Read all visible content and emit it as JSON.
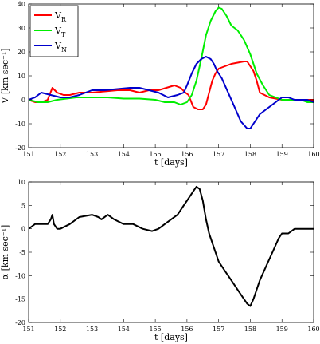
{
  "chart_data": [
    {
      "type": "line",
      "xlabel": "t [days]",
      "ylabel": "V [km sec⁻¹]",
      "xlim": [
        151,
        160
      ],
      "ylim": [
        -20,
        40
      ],
      "xticks": [
        151,
        152,
        153,
        154,
        155,
        156,
        157,
        158,
        159,
        160
      ],
      "yticks": [
        -20,
        -10,
        0,
        10,
        20,
        30,
        40
      ],
      "grid": false,
      "legend_position": "top-left",
      "series": [
        {
          "name": "V",
          "subscript": "R",
          "color": "#ff0000",
          "x": [
            151.0,
            151.2,
            151.4,
            151.6,
            151.75,
            151.9,
            152.1,
            152.3,
            152.6,
            153.0,
            153.4,
            153.8,
            154.2,
            154.5,
            154.8,
            155.1,
            155.35,
            155.6,
            155.8,
            155.95,
            156.05,
            156.2,
            156.35,
            156.5,
            156.6,
            156.7,
            156.8,
            156.9,
            157.0,
            157.2,
            157.4,
            157.6,
            157.8,
            157.9,
            158.0,
            158.1,
            158.2,
            158.3,
            158.45,
            158.6,
            158.8,
            159.0,
            159.2,
            159.4,
            159.6,
            159.8,
            160.0
          ],
          "y": [
            0,
            -1,
            -1,
            0,
            5,
            3,
            2,
            2,
            3,
            3,
            3.5,
            4,
            4,
            3,
            4,
            4,
            5,
            6,
            5,
            3,
            2,
            -3,
            -4,
            -4,
            -2,
            3,
            8,
            11,
            13,
            14,
            15,
            15.5,
            16,
            16,
            14,
            12,
            8,
            3,
            2,
            1,
            0.5,
            0,
            0,
            0,
            0,
            0,
            0
          ]
        },
        {
          "name": "V",
          "subscript": "T",
          "color": "#00ee00",
          "x": [
            151.0,
            151.3,
            151.6,
            151.9,
            152.2,
            152.5,
            153.0,
            153.5,
            154.0,
            154.5,
            155.0,
            155.3,
            155.6,
            155.8,
            156.0,
            156.15,
            156.3,
            156.45,
            156.6,
            156.75,
            156.9,
            157.0,
            157.1,
            157.25,
            157.4,
            157.6,
            157.8,
            158.0,
            158.2,
            158.4,
            158.6,
            158.8,
            159.0,
            159.3,
            159.6,
            159.8,
            160.0
          ],
          "y": [
            0,
            -1,
            -1,
            0,
            0.5,
            1,
            1,
            1,
            0.5,
            0.5,
            0,
            -1,
            -1,
            -2,
            -1,
            2,
            8,
            17,
            27,
            33,
            37,
            38.5,
            38,
            35,
            31,
            29,
            25,
            19,
            11,
            6,
            2,
            1,
            0,
            0,
            0,
            -1,
            -1
          ]
        },
        {
          "name": "V",
          "subscript": "N",
          "color": "#0000cc",
          "x": [
            151.0,
            151.2,
            151.4,
            151.7,
            152.0,
            152.3,
            152.6,
            153.0,
            153.4,
            153.8,
            154.2,
            154.5,
            154.8,
            155.1,
            155.4,
            155.7,
            155.9,
            156.0,
            156.15,
            156.3,
            156.45,
            156.6,
            156.75,
            156.85,
            156.95,
            157.1,
            157.3,
            157.5,
            157.7,
            157.9,
            158.0,
            158.1,
            158.3,
            158.5,
            158.7,
            158.9,
            159.0,
            159.2,
            159.4,
            159.6,
            159.8,
            160.0
          ],
          "y": [
            0,
            1,
            3,
            2,
            1,
            1,
            2,
            4,
            4,
            4.5,
            5,
            5,
            4,
            3,
            1,
            2,
            3,
            6,
            11,
            15,
            17,
            18,
            17,
            15,
            12,
            9,
            3,
            -3,
            -9,
            -12,
            -12,
            -10,
            -6,
            -4,
            -2,
            0,
            1,
            1,
            0,
            0,
            0,
            -1
          ]
        }
      ]
    },
    {
      "type": "line",
      "xlabel": "t [days]",
      "ylabel": "α [km sec⁻¹]",
      "xlim": [
        151,
        160
      ],
      "ylim": [
        -20,
        10
      ],
      "xticks": [
        151,
        152,
        153,
        154,
        155,
        156,
        157,
        158,
        159,
        160
      ],
      "yticks": [
        -20,
        -15,
        -10,
        -5,
        0,
        5,
        10
      ],
      "grid": false,
      "series": [
        {
          "color": "#000000",
          "x": [
            151.0,
            151.2,
            151.4,
            151.6,
            151.7,
            151.75,
            151.8,
            151.9,
            152.0,
            152.3,
            152.6,
            153.0,
            153.2,
            153.3,
            153.5,
            153.7,
            154.0,
            154.3,
            154.6,
            154.9,
            155.1,
            155.3,
            155.5,
            155.7,
            155.9,
            156.0,
            156.1,
            156.2,
            156.3,
            156.4,
            156.5,
            156.6,
            156.7,
            156.8,
            157.0,
            157.2,
            157.4,
            157.6,
            157.8,
            157.9,
            158.0,
            158.1,
            158.3,
            158.5,
            158.7,
            158.9,
            159.0,
            159.2,
            159.4,
            159.6,
            159.8,
            160.0
          ],
          "y": [
            0,
            1,
            1,
            1,
            2,
            3,
            1,
            0,
            0,
            1,
            2.5,
            3,
            2.5,
            2,
            3,
            2,
            1,
            1,
            0,
            -0.5,
            0,
            1,
            2,
            3,
            5,
            6,
            7,
            8,
            9,
            8.5,
            6,
            2,
            -1,
            -3,
            -7,
            -9,
            -11,
            -13,
            -15,
            -16,
            -16.5,
            -15,
            -11,
            -8,
            -5,
            -2,
            -1,
            -1,
            0,
            0,
            0,
            0
          ]
        }
      ]
    }
  ]
}
